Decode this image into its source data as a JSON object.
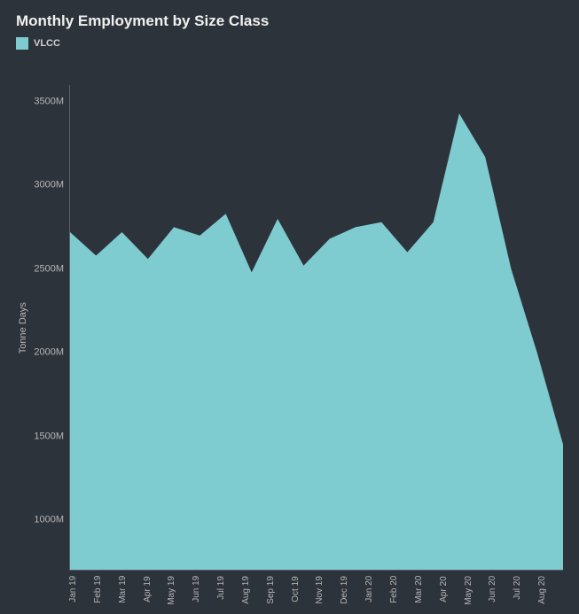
{
  "chart": {
    "type": "area",
    "title": "Monthly Employment by  Size Class",
    "title_fontsize": 17,
    "title_color": "#f0f0f0",
    "background_color": "#2d333a",
    "legend": {
      "items": [
        {
          "label": "VLCC",
          "color": "#7ecbd0"
        }
      ],
      "position": "top-left",
      "fontsize": 11,
      "text_color": "#d0d0d0"
    },
    "ylabel": "Tonne Days",
    "label_fontsize": 11,
    "axis_color": "#5a5f66",
    "tick_color": "#b5b5b5",
    "tick_fontsize": 11,
    "ylim": [
      700,
      3600
    ],
    "yticks": [
      3500,
      3000,
      2500,
      2000,
      1500,
      1000
    ],
    "ytick_labels": [
      "3500M",
      "3000M",
      "2500M",
      "2000M",
      "1500M",
      "1000M"
    ],
    "categories": [
      "Jan 19",
      "Feb 19",
      "Mar 19",
      "Apr 19",
      "May 19",
      "Jun 19",
      "Jul 19",
      "Aug 19",
      "Sep 19",
      "Oct 19",
      "Nov 19",
      "Dec 19",
      "Jan 20",
      "Feb 20",
      "Mar 20",
      "Apr 20",
      "May 20",
      "Jun 20",
      "Jul 20",
      "Aug 20"
    ],
    "series": [
      {
        "name": "VLCC",
        "color": "#7ecbd0",
        "fill_opacity": 1.0,
        "line_width": 0,
        "values": [
          2720,
          2580,
          2720,
          2560,
          2750,
          2700,
          2830,
          2480,
          2800,
          2520,
          2680,
          2750,
          2780,
          2600,
          2780,
          3430,
          3170,
          2500,
          2000,
          1450
        ]
      }
    ],
    "aspect_w": 653,
    "aspect_h": 693
  }
}
